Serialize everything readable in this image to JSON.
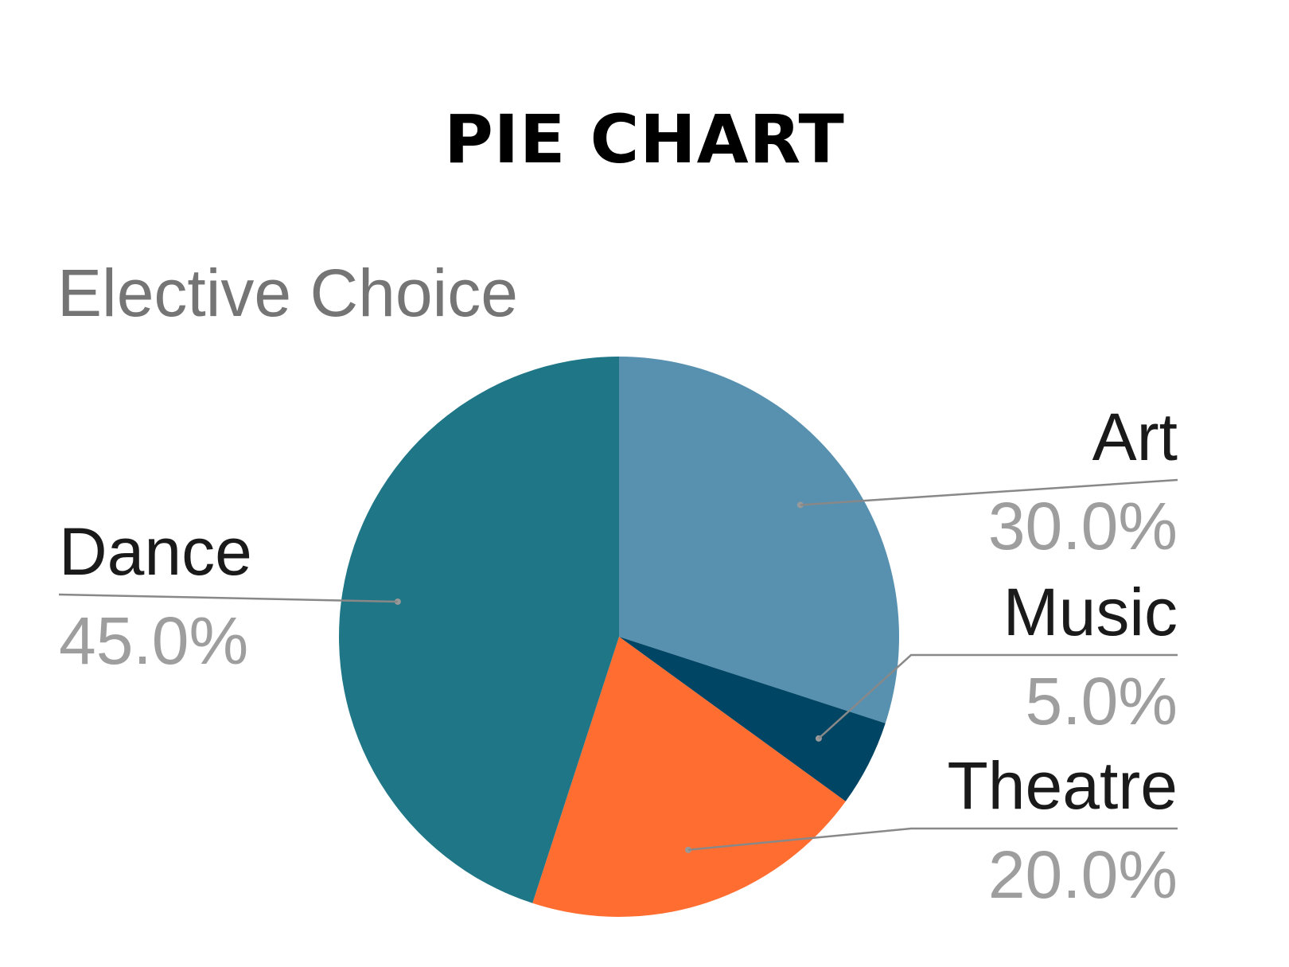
{
  "header": {
    "title": "PIE CHART"
  },
  "chart_data": {
    "type": "pie",
    "title": "Elective Choice",
    "categories": [
      "Art",
      "Music",
      "Theatre",
      "Dance"
    ],
    "values": [
      30.0,
      5.0,
      20.0,
      45.0
    ],
    "labels": [
      "30.0%",
      "5.0%",
      "20.0%",
      "45.0%"
    ],
    "colors": [
      "#5891b0",
      "#004664",
      "#ff6d30",
      "#1f7686"
    ],
    "start_angle_deg": 0,
    "direction": "clockwise",
    "legend": "none"
  }
}
